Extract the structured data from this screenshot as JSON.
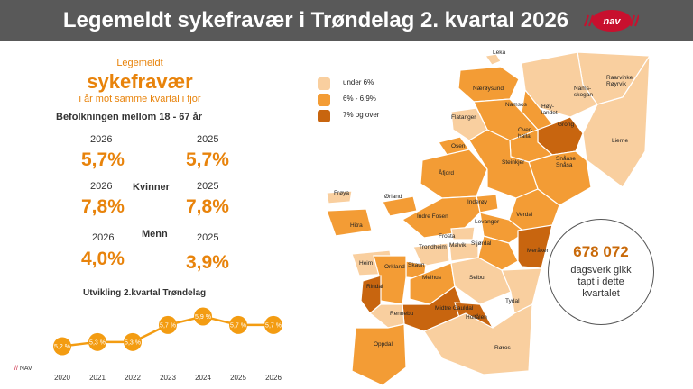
{
  "header": {
    "title": "Legemeldt sykefravær i Trøndelag 2. kvartal 2026",
    "logo_text": "nav"
  },
  "summary": {
    "line1": "Legemeldt",
    "line2": "sykefravær",
    "line3": "i år mot samme kvartal i fjor",
    "population": "Befolkningen mellom 18 - 67 år",
    "total": {
      "year_a": "2026",
      "value_a": "5,7%",
      "year_b": "2025",
      "value_b": "5,7%"
    },
    "women": {
      "label": "Kvinner",
      "year_a": "2026",
      "value_a": "7,8%",
      "year_b": "2025",
      "value_b": "7,8%"
    },
    "men": {
      "label": "Menn",
      "year_a": "2026",
      "value_a": "4,0%",
      "year_b": "2025",
      "value_b": "3,9%"
    }
  },
  "chart_data": {
    "type": "line",
    "title": "Utvikling 2.kvartal Trøndelag",
    "categories": [
      "2020",
      "2021",
      "2022",
      "2023",
      "2024",
      "2025",
      "2026"
    ],
    "series": [
      {
        "values": [
          5.2,
          5.3,
          5.3,
          5.7,
          5.9,
          5.7,
          5.7
        ],
        "labels": [
          "5,2 %",
          "5,3 %",
          "5,3 %",
          "5,7 %",
          "5,9 %",
          "5,7 %",
          "5,7 %"
        ]
      }
    ],
    "ylim": [
      5.0,
      6.1
    ],
    "color": "#f39c12",
    "grid": false,
    "legend": "none"
  },
  "legend": {
    "items": [
      {
        "label": "under 6%",
        "color": "#f9cf9f"
      },
      {
        "label": "6% - 6,9%",
        "color": "#f39c35"
      },
      {
        "label": "7% og over",
        "color": "#c8650f"
      }
    ]
  },
  "map": {
    "municipalities": [
      "Leka",
      "Nærøysund",
      "Raarvihke Røyrvik",
      "Namsskogan",
      "Høylandet",
      "Namsos",
      "Flatanger",
      "Grong",
      "Lierne",
      "Overhalla",
      "Osen",
      "Snåase Snåsa",
      "Åfjord",
      "Steinkjer",
      "Frøya",
      "Ørland",
      "Inderøy",
      "Verdal",
      "Indre Fosen",
      "Hitra",
      "Levanger",
      "Frosta",
      "Stjørdal",
      "Meråker",
      "Trondheim",
      "Malvik",
      "Heim",
      "Skaun",
      "Orkland",
      "Melhus",
      "Selbu",
      "Rindal",
      "Midtre Gauldal",
      "Holtålen",
      "Tydal",
      "Rennebu",
      "Oppdal",
      "Røros"
    ],
    "colors": {
      "low": "#f9cf9f",
      "mid": "#f39c35",
      "high": "#c8650f",
      "outline": "#ffffff"
    }
  },
  "callout": {
    "number": "678 072",
    "line1": "dagsverk gikk",
    "line2": "tapt i dette",
    "line3": "kvartalet"
  },
  "footer": {
    "tag": "NAV"
  }
}
